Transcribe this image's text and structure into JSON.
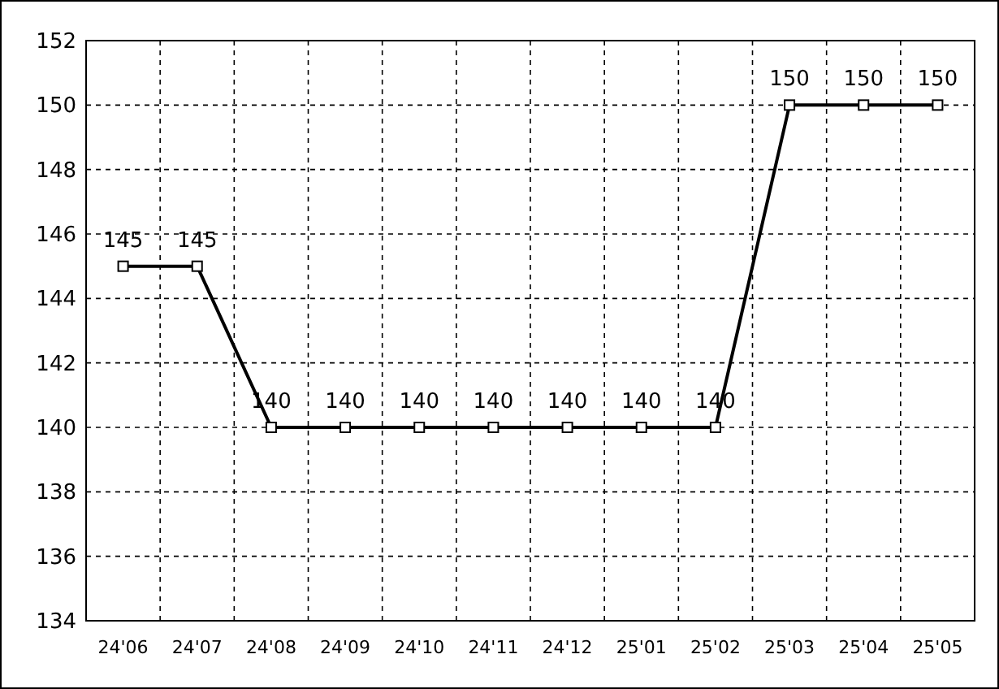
{
  "chart_data": {
    "type": "line",
    "categories": [
      "24'06",
      "24'07",
      "24'08",
      "24'09",
      "24'10",
      "24'11",
      "24'12",
      "25'01",
      "25'02",
      "25'03",
      "25'04",
      "25'05"
    ],
    "values": [
      145,
      145,
      140,
      140,
      140,
      140,
      140,
      140,
      140,
      150,
      150,
      150
    ],
    "color": "#000000",
    "marker": "square",
    "line_style": "solid",
    "data_labels": true,
    "grid": true,
    "ylim": [
      134,
      152
    ],
    "yticks": [
      134,
      136,
      138,
      140,
      142,
      144,
      146,
      148,
      150,
      152
    ]
  }
}
